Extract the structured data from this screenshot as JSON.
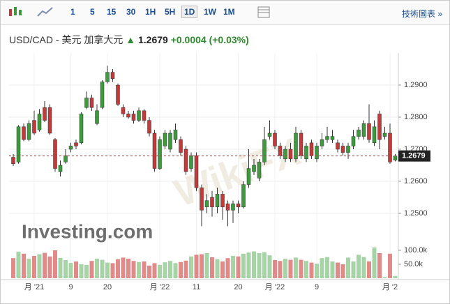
{
  "toolbar": {
    "intervals": [
      "1",
      "5",
      "15",
      "30",
      "1H",
      "5H",
      "1D",
      "1W",
      "1M"
    ],
    "active": "1D",
    "link": "技術圖表 »"
  },
  "chart_data": {
    "type": "candlestick",
    "title": "USD/CAD - 美元 加拿大元",
    "last_price": 1.2679,
    "change": "+0.0004",
    "change_percent": "(+0.03%)",
    "watermark": "Investing.com",
    "watermark2": "WikiFX",
    "categories": [
      null,
      null,
      null,
      null,
      "月 '21",
      null,
      null,
      null,
      null,
      null,
      null,
      "9",
      null,
      null,
      null,
      null,
      null,
      null,
      "20",
      null,
      null,
      null,
      null,
      null,
      null,
      null,
      null,
      null,
      "月 '22",
      null,
      null,
      null,
      null,
      null,
      null,
      "11",
      null,
      null,
      null,
      null,
      null,
      null,
      null,
      "20",
      null,
      null,
      null,
      null,
      null,
      null,
      "月 '22",
      null,
      null,
      null,
      null,
      null,
      null,
      null,
      "9",
      null,
      null,
      null,
      null,
      null,
      null,
      null,
      null,
      null,
      null,
      null,
      null,
      null,
      "月 '2",
      null
    ],
    "open": [
      1.2675,
      1.266,
      1.277,
      1.273,
      1.279,
      1.276,
      1.283,
      1.283,
      1.273,
      1.263,
      1.266,
      1.27,
      1.272,
      1.272,
      1.283,
      1.286,
      1.278,
      1.283,
      1.291,
      1.294,
      1.29,
      1.283,
      1.281,
      1.281,
      1.279,
      1.282,
      1.279,
      1.275,
      1.264,
      1.271,
      1.27,
      1.273,
      1.273,
      1.27,
      1.264,
      1.268,
      1.258,
      1.252,
      1.255,
      1.252,
      1.256,
      1.253,
      1.251,
      1.253,
      1.252,
      1.259,
      1.263,
      1.261,
      1.266,
      1.274,
      1.275,
      1.271,
      1.267,
      1.27,
      1.267,
      1.275,
      1.267,
      1.272,
      1.267,
      1.271,
      1.273,
      1.273,
      1.272,
      1.271,
      1.269,
      1.271,
      1.274,
      1.274,
      1.278,
      1.272,
      1.281,
      1.274,
      1.275,
      1.2666
    ],
    "high": [
      1.2685,
      1.2775,
      1.278,
      1.279,
      1.282,
      1.2825,
      1.285,
      1.284,
      1.2735,
      1.2665,
      1.27,
      1.272,
      1.273,
      1.2815,
      1.288,
      1.287,
      1.284,
      1.2915,
      1.296,
      1.295,
      1.2905,
      1.284,
      1.282,
      1.282,
      1.283,
      1.2825,
      1.28,
      1.276,
      1.274,
      1.276,
      1.276,
      1.278,
      1.274,
      1.271,
      1.269,
      1.269,
      1.259,
      1.256,
      1.257,
      1.258,
      1.257,
      1.254,
      1.254,
      1.254,
      1.26,
      1.27,
      1.267,
      1.267,
      1.277,
      1.279,
      1.276,
      1.272,
      1.271,
      1.272,
      1.277,
      1.276,
      1.272,
      1.273,
      1.272,
      1.275,
      1.277,
      1.276,
      1.273,
      1.272,
      1.272,
      1.276,
      1.277,
      1.279,
      1.284,
      1.279,
      1.282,
      1.277,
      1.278,
      1.2685
    ],
    "low": [
      1.2648,
      1.2655,
      1.2725,
      1.2725,
      1.2745,
      1.2755,
      1.2785,
      1.2745,
      1.263,
      1.2615,
      1.2655,
      1.269,
      1.27,
      1.2715,
      1.2825,
      1.282,
      1.2775,
      1.2825,
      1.2905,
      1.291,
      1.2835,
      1.28,
      1.2795,
      1.278,
      1.2785,
      1.278,
      1.274,
      1.263,
      1.2635,
      1.27,
      1.269,
      1.272,
      1.268,
      1.262,
      1.263,
      1.257,
      1.246,
      1.25,
      1.249,
      1.25,
      1.248,
      1.246,
      1.247,
      1.25,
      1.2515,
      1.258,
      1.262,
      1.26,
      1.265,
      1.273,
      1.27,
      1.267,
      1.266,
      1.266,
      1.266,
      1.267,
      1.266,
      1.267,
      1.266,
      1.27,
      1.272,
      1.272,
      1.269,
      1.268,
      1.267,
      1.27,
      1.273,
      1.273,
      1.272,
      1.271,
      1.27,
      1.273,
      1.2655,
      1.2662
    ],
    "close": [
      1.2655,
      1.277,
      1.273,
      1.278,
      1.275,
      1.281,
      1.279,
      1.275,
      1.264,
      1.265,
      1.268,
      1.271,
      1.271,
      1.281,
      1.286,
      1.283,
      1.282,
      1.291,
      1.294,
      1.292,
      1.284,
      1.281,
      1.28,
      1.279,
      1.282,
      1.279,
      1.275,
      1.264,
      1.273,
      1.275,
      1.275,
      1.276,
      1.269,
      1.263,
      1.268,
      1.258,
      1.251,
      1.254,
      1.252,
      1.256,
      1.252,
      1.251,
      1.253,
      1.252,
      1.259,
      1.264,
      1.265,
      1.266,
      1.273,
      1.275,
      1.271,
      1.268,
      1.27,
      1.267,
      1.275,
      1.268,
      1.271,
      1.268,
      1.271,
      1.273,
      1.274,
      1.274,
      1.27,
      1.269,
      1.271,
      1.274,
      1.276,
      1.278,
      1.273,
      1.277,
      1.273,
      1.275,
      1.266,
      1.2679
    ],
    "volume": [
      72000,
      95000,
      88000,
      70000,
      80000,
      86000,
      91000,
      78000,
      100000,
      73000,
      65000,
      55000,
      60000,
      50000,
      48000,
      62000,
      70000,
      66000,
      56000,
      54000,
      68000,
      74000,
      70000,
      62000,
      58000,
      60000,
      45000,
      54000,
      48000,
      57000,
      62000,
      54000,
      58000,
      63000,
      78000,
      84000,
      86000,
      90000,
      75000,
      68000,
      60000,
      72000,
      80000,
      78000,
      88000,
      92000,
      96000,
      90000,
      93000,
      82000,
      65000,
      62000,
      70000,
      66000,
      74000,
      66000,
      62000,
      56000,
      52000,
      72000,
      76000,
      60000,
      56000,
      50000,
      74000,
      60000,
      84000,
      76000,
      60000,
      110000,
      90000,
      4000,
      88000,
      8000
    ],
    "ylim": [
      1.2424,
      1.3
    ],
    "yticks": [
      {
        "value": 1.25,
        "label": "1.2500"
      },
      {
        "value": 1.26,
        "label": "1.2600"
      },
      {
        "value": 1.27,
        "label": "1.2700"
      },
      {
        "value": 1.28,
        "label": "1.2800"
      },
      {
        "value": 1.29,
        "label": "1.2900"
      }
    ],
    "volume_lim": [
      0,
      130000
    ],
    "volume_ticks": [
      {
        "value": 50000,
        "label": "50.0k"
      },
      {
        "value": 100000,
        "label": "100.0k"
      }
    ],
    "up_color": "#3d9a3d",
    "down_color": "#c23a3a",
    "volume_up_color": "#a6d4a6",
    "volume_down_color": "#e08a8a",
    "grid": true
  }
}
